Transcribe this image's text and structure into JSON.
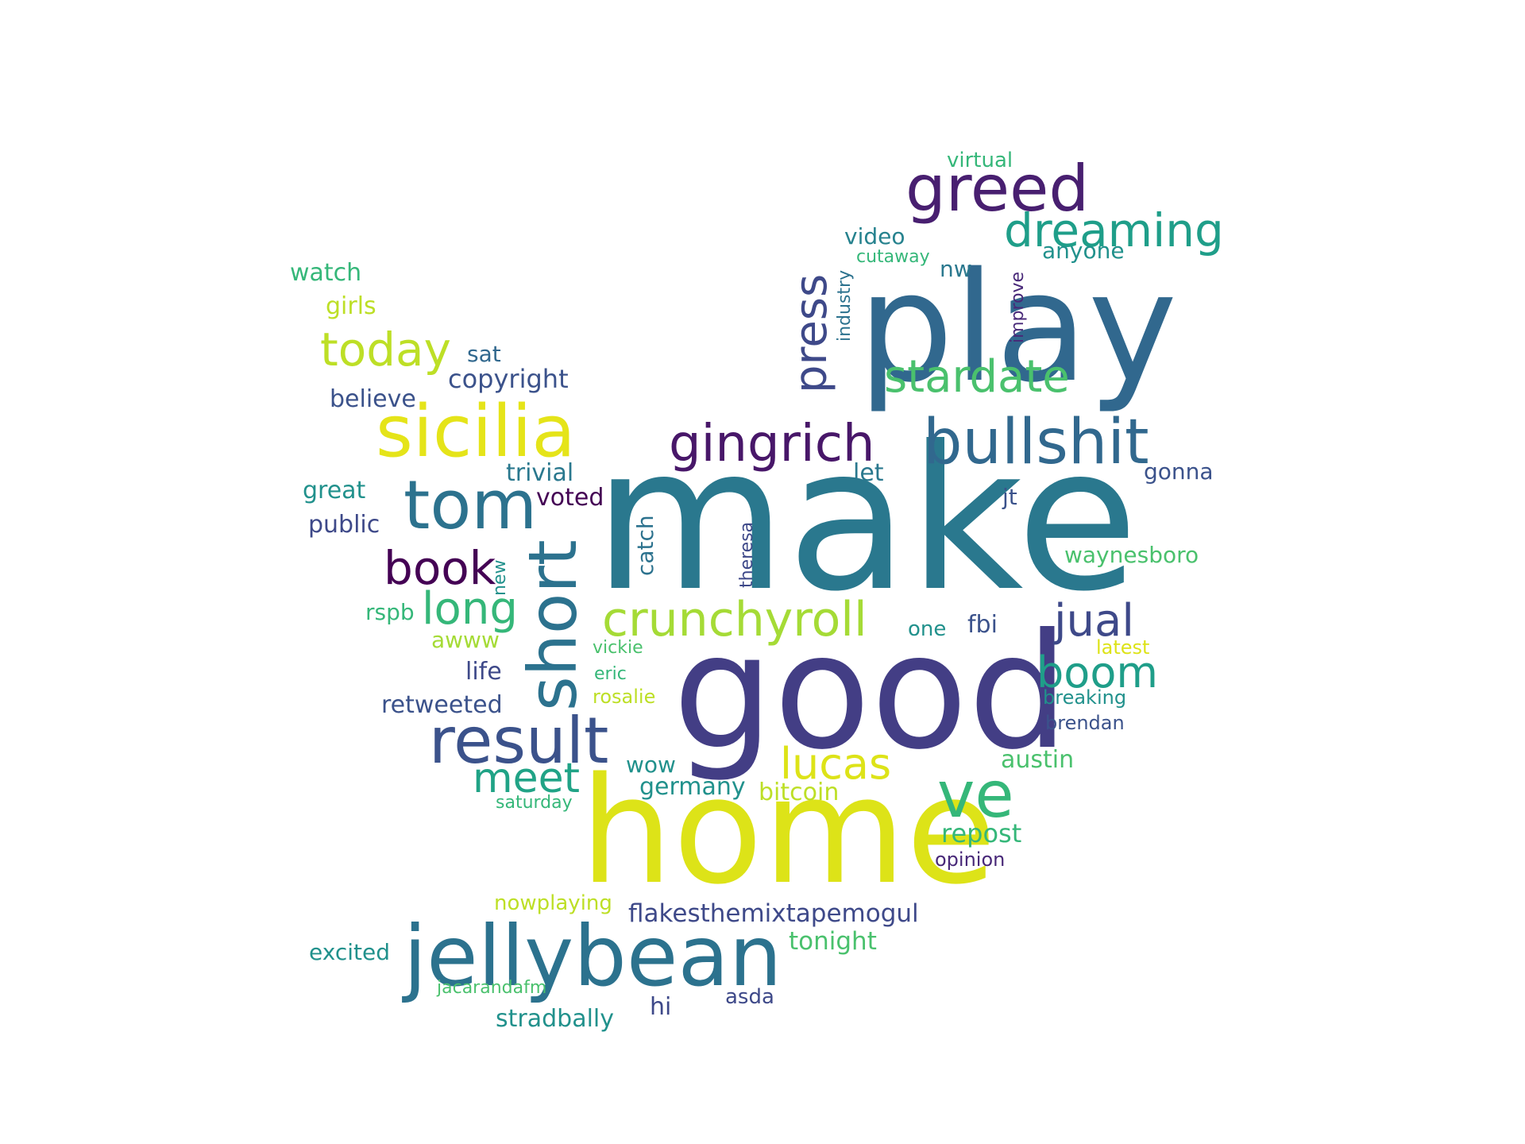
{
  "word_cloud": {
    "words": [
      {
        "text": "make",
        "color": "#2a788e"
      },
      {
        "text": "play",
        "color": "#31688e"
      },
      {
        "text": "good",
        "color": "#433e85"
      },
      {
        "text": "home",
        "color": "#dde318"
      },
      {
        "text": "jellybean",
        "color": "#2c728e"
      },
      {
        "text": "greed",
        "color": "#481f70"
      },
      {
        "text": "sicilia",
        "color": "#e5e419"
      },
      {
        "text": "bullshit",
        "color": "#31688e"
      },
      {
        "text": "gingrich",
        "color": "#481769"
      },
      {
        "text": "tom",
        "color": "#2c728e"
      },
      {
        "text": "short",
        "color": "#2c728e"
      },
      {
        "text": "result",
        "color": "#3b528b"
      },
      {
        "text": "dreaming",
        "color": "#1f9e89"
      },
      {
        "text": "crunchyroll",
        "color": "#a5db36"
      },
      {
        "text": "stardate",
        "color": "#4ac16d"
      },
      {
        "text": "press",
        "color": "#3e4989"
      },
      {
        "text": "today",
        "color": "#bddf26"
      },
      {
        "text": "book",
        "color": "#440154"
      },
      {
        "text": "long",
        "color": "#35b779"
      },
      {
        "text": "ve",
        "color": "#35b779"
      },
      {
        "text": "lucas",
        "color": "#dde318"
      },
      {
        "text": "jual",
        "color": "#3e4989"
      },
      {
        "text": "boom",
        "color": "#1f9e89"
      },
      {
        "text": "meet",
        "color": "#20a386"
      },
      {
        "text": "copyright",
        "color": "#3b528b"
      },
      {
        "text": "watch",
        "color": "#35b779"
      },
      {
        "text": "girls",
        "color": "#bddf26"
      },
      {
        "text": "believe",
        "color": "#3b528b"
      },
      {
        "text": "sat",
        "color": "#31688e"
      },
      {
        "text": "video",
        "color": "#26828e"
      },
      {
        "text": "cutaway",
        "color": "#35b779"
      },
      {
        "text": "industry",
        "color": "#2c728e"
      },
      {
        "text": "nw",
        "color": "#2a788e"
      },
      {
        "text": "improve",
        "color": "#482878"
      },
      {
        "text": "anyone",
        "color": "#21918c"
      },
      {
        "text": "virtual",
        "color": "#35b779"
      },
      {
        "text": "trivial",
        "color": "#2a788e"
      },
      {
        "text": "great",
        "color": "#21918c"
      },
      {
        "text": "voted",
        "color": "#440154"
      },
      {
        "text": "public",
        "color": "#3e4989"
      },
      {
        "text": "catch",
        "color": "#2c728e"
      },
      {
        "text": "theresa",
        "color": "#3e4989"
      },
      {
        "text": "new",
        "color": "#21918c"
      },
      {
        "text": "let",
        "color": "#2a788e"
      },
      {
        "text": "gonna",
        "color": "#3b528b"
      },
      {
        "text": "jt",
        "color": "#3b528b"
      },
      {
        "text": "waynesboro",
        "color": "#4ac16d"
      },
      {
        "text": "rspb",
        "color": "#35b779"
      },
      {
        "text": "awww",
        "color": "#a5db36"
      },
      {
        "text": "fbi",
        "color": "#3b528b"
      },
      {
        "text": "one",
        "color": "#21918c"
      },
      {
        "text": "vickie",
        "color": "#4ac16d"
      },
      {
        "text": "latest",
        "color": "#dde318"
      },
      {
        "text": "life",
        "color": "#3e4989"
      },
      {
        "text": "eric",
        "color": "#35b779"
      },
      {
        "text": "retweeted",
        "color": "#3b528b"
      },
      {
        "text": "rosalie",
        "color": "#bddf26"
      },
      {
        "text": "breaking",
        "color": "#21918c"
      },
      {
        "text": "brendan",
        "color": "#3b528b"
      },
      {
        "text": "wow",
        "color": "#21918c"
      },
      {
        "text": "austin",
        "color": "#4ac16d"
      },
      {
        "text": "germany",
        "color": "#21918c"
      },
      {
        "text": "bitcoin",
        "color": "#bddf26"
      },
      {
        "text": "saturday",
        "color": "#35b779"
      },
      {
        "text": "repost",
        "color": "#35b779"
      },
      {
        "text": "opinion",
        "color": "#482878"
      },
      {
        "text": "nowplaying",
        "color": "#bddf26"
      },
      {
        "text": "flakesthemixtapemogul",
        "color": "#3e4989"
      },
      {
        "text": "tonight",
        "color": "#4ac16d"
      },
      {
        "text": "excited",
        "color": "#21918c"
      },
      {
        "text": "jacarandafm",
        "color": "#4ac16d"
      },
      {
        "text": "hi",
        "color": "#3e4989"
      },
      {
        "text": "asda",
        "color": "#3e4989"
      },
      {
        "text": "stradbally",
        "color": "#21918c"
      }
    ]
  }
}
